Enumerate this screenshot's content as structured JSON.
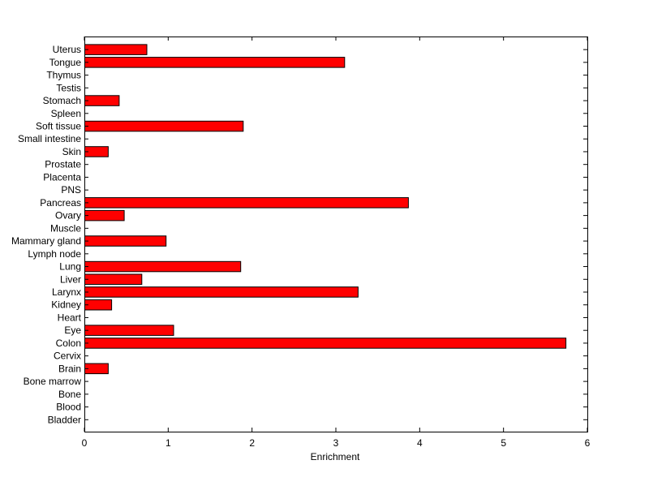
{
  "chart_data": {
    "type": "bar",
    "orientation": "horizontal",
    "title": "",
    "xlabel": "Enrichment",
    "ylabel": "",
    "xlim": [
      0,
      6
    ],
    "xticks": [
      0,
      1,
      2,
      3,
      4,
      5,
      6
    ],
    "grid": false,
    "bar_color": "#ff0000",
    "edge_color": "#000000",
    "categories": [
      "Bladder",
      "Blood",
      "Bone",
      "Bone marrow",
      "Brain",
      "Cervix",
      "Colon",
      "Eye",
      "Heart",
      "Kidney",
      "Larynx",
      "Liver",
      "Lung",
      "Lymph node",
      "Mammary gland",
      "Muscle",
      "Ovary",
      "Pancreas",
      "PNS",
      "Placenta",
      "Prostate",
      "Skin",
      "Small intestine",
      "Soft tissue",
      "Spleen",
      "Stomach",
      "Testis",
      "Thymus",
      "Tongue",
      "Uterus"
    ],
    "values": [
      0,
      0,
      0,
      0,
      0.28,
      0,
      5.74,
      1.06,
      0,
      0.32,
      3.26,
      0.68,
      1.86,
      0,
      0.97,
      0,
      0.47,
      3.86,
      0,
      0,
      0,
      0.28,
      0,
      1.89,
      0,
      0.41,
      0,
      0,
      3.1,
      0.74
    ]
  }
}
